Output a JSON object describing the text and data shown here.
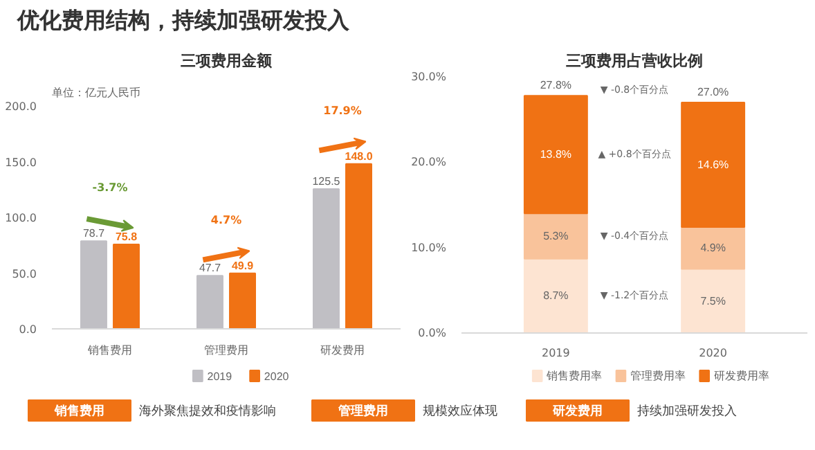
{
  "chart_data": [
    {
      "type": "bar",
      "title": "三项费用金额",
      "categories": [
        "销售费用",
        "管理费用",
        "研发费用"
      ],
      "series": [
        {
          "name": "2019",
          "color": "#c0bfc4",
          "values": [
            78.7,
            47.7,
            125.5
          ],
          "value_labels": [
            "78.7",
            "47.7",
            "125.5"
          ]
        },
        {
          "name": "2020",
          "color": "#f07214",
          "values": [
            75.8,
            49.9,
            148.0
          ],
          "value_labels": [
            "75.8",
            "49.9",
            "148.0"
          ]
        }
      ],
      "ylim": [
        0,
        200
      ],
      "yticks": [
        {
          "value": 0,
          "label": "0.0"
        },
        {
          "value": 50,
          "label": "50.0"
        },
        {
          "value": 100,
          "label": "100.0"
        },
        {
          "value": 150,
          "label": "150.0"
        },
        {
          "value": 200,
          "label": "200.0"
        }
      ],
      "legend": "bottom",
      "annotations": [
        "单位：亿元人民币",
        "-3.7%",
        "4.7%",
        "17.9%"
      ]
    },
    {
      "type": "bar",
      "title": "三项费用占营收比例",
      "categories": [
        "2019",
        "2020"
      ],
      "stacked": true,
      "series": [
        {
          "name": "销售费用率",
          "color": "#fde4d2",
          "values": [
            8.7,
            7.5
          ],
          "value_labels": [
            "8.7%",
            "7.5%"
          ]
        },
        {
          "name": "管理费用率",
          "color": "#f9c39b",
          "values": [
            5.3,
            4.9
          ],
          "value_labels": [
            "5.3%",
            "4.9%"
          ]
        },
        {
          "name": "研发费用率",
          "color": "#f07214",
          "values": [
            13.8,
            14.6
          ],
          "value_labels": [
            "13.8%",
            "14.6%"
          ]
        }
      ],
      "totals": [
        "27.8%",
        "27.0%"
      ],
      "ylim": [
        0,
        30
      ],
      "yticks": [
        {
          "value": 0,
          "label": "0.0%"
        },
        {
          "value": 10,
          "label": "10.0%"
        },
        {
          "value": 20,
          "label": "20.0%"
        },
        {
          "value": 30,
          "label": "30.0%"
        }
      ],
      "legend": "bottom",
      "annotations": [
        "▼ -0.8个百分点",
        "▲ +0.8个百分点",
        "▼ -0.4个百分点",
        "▼ -1.2个百分点"
      ]
    },
    {
      "type": "other",
      "title": "优化费用结构，持续加强研发投入",
      "annotations": [
        "销售费用",
        "海外聚焦提效和疫情影响",
        "管理费用",
        "规模效应体现",
        "研发费用",
        "持续加强研发投入"
      ]
    }
  ]
}
